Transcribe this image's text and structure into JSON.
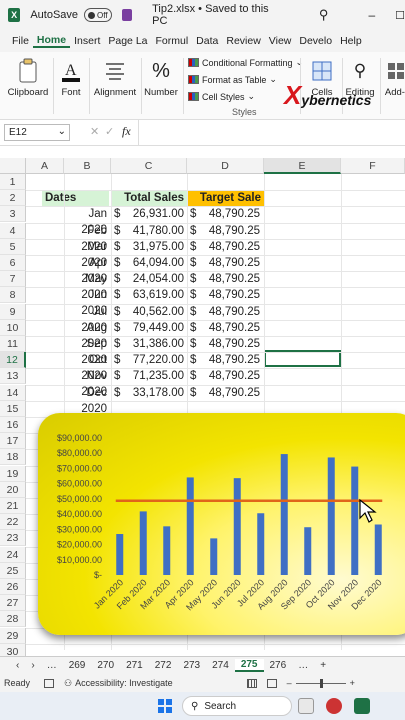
{
  "titlebar": {
    "autosave_label": "AutoSave",
    "autosave_state": "Off",
    "filename": "Tip2.xlsx • Saved to this PC",
    "chevron": "⌄"
  },
  "menu": [
    "File",
    "Home",
    "Insert",
    "Page La",
    "Formul",
    "Data",
    "Review",
    "View",
    "Develo",
    "Help"
  ],
  "ribbon": {
    "clipboard": "Clipboard",
    "font": "Font",
    "alignment": "Alignment",
    "number": "Number",
    "cond_fmt": "Conditional Formatting",
    "fmt_table": "Format as Table",
    "cell_styles": "Cell Styles",
    "styles": "Styles",
    "cells": "Cells",
    "editing": "Editing",
    "addins": "Add-i",
    "watermark": "ybernetics",
    "watermark_x": "X"
  },
  "formula_bar": {
    "name_box": "E12",
    "fx": "fx",
    "value": ""
  },
  "columns": [
    "A",
    "B",
    "C",
    "D",
    "E",
    "F"
  ],
  "rows": [
    "1",
    "2",
    "3",
    "4",
    "5",
    "6",
    "7",
    "8",
    "9",
    "10",
    "11",
    "12",
    "13",
    "14",
    "15",
    "16",
    "17",
    "18",
    "19",
    "20",
    "21",
    "22",
    "23",
    "24",
    "25",
    "26",
    "27",
    "28",
    "29",
    "30"
  ],
  "headers": {
    "dates": "Dates",
    "total_sales": "Total Sales",
    "target_sale": "Target Sale"
  },
  "currency": "$",
  "table": [
    {
      "date": "Jan 2020",
      "sales": "26,931.00",
      "target": "48,790.25"
    },
    {
      "date": "Feb 2020",
      "sales": "41,780.00",
      "target": "48,790.25"
    },
    {
      "date": "Mar 2020",
      "sales": "31,975.00",
      "target": "48,790.25"
    },
    {
      "date": "Apr 2020",
      "sales": "64,094.00",
      "target": "48,790.25"
    },
    {
      "date": "May 2020",
      "sales": "24,054.00",
      "target": "48,790.25"
    },
    {
      "date": "Jun 2020",
      "sales": "63,619.00",
      "target": "48,790.25"
    },
    {
      "date": "Jul 2020",
      "sales": "40,562.00",
      "target": "48,790.25"
    },
    {
      "date": "Aug 2020",
      "sales": "79,449.00",
      "target": "48,790.25"
    },
    {
      "date": "Sep 2020",
      "sales": "31,386.00",
      "target": "48,790.25"
    },
    {
      "date": "Oct 2020",
      "sales": "77,220.00",
      "target": "48,790.25"
    },
    {
      "date": "Nov 2020",
      "sales": "71,235.00",
      "target": "48,790.25"
    },
    {
      "date": "Dec 2020",
      "sales": "33,178.00",
      "target": "48,790.25"
    }
  ],
  "chart_data": {
    "type": "bar",
    "categories": [
      "Jan 2020",
      "Feb 2020",
      "Mar 2020",
      "Apr 2020",
      "May 2020",
      "Jun 2020",
      "Jul 2020",
      "Aug 2020",
      "Sep 2020",
      "Oct 2020",
      "Nov 2020",
      "Dec 2020"
    ],
    "series": [
      {
        "values": [
          26931,
          41780,
          31975,
          64094,
          24054,
          63619,
          40562,
          79449,
          31386,
          77220,
          71235,
          33178
        ],
        "color": "#3f6fc4"
      },
      {
        "type": "line",
        "values": [
          48790.25,
          48790.25,
          48790.25,
          48790.25,
          48790.25,
          48790.25,
          48790.25,
          48790.25,
          48790.25,
          48790.25,
          48790.25,
          48790.25
        ],
        "color": "#e0651a"
      }
    ],
    "yticks": [
      "$-",
      "$10,000.00",
      "$20,000.00",
      "$30,000.00",
      "$40,000.00",
      "$50,000.00",
      "$60,000.00",
      "$70,000.00",
      "$80,000.00",
      "$90,000.00"
    ],
    "ylim": [
      0,
      90000
    ],
    "grid": false
  },
  "sheet_tabs": [
    "269",
    "270",
    "271",
    "272",
    "273",
    "274",
    "275",
    "276"
  ],
  "selected_tab": "275",
  "status": {
    "ready": "Ready",
    "accessibility": "Accessibility: Investigate"
  },
  "taskbar": {
    "search": "Search"
  }
}
